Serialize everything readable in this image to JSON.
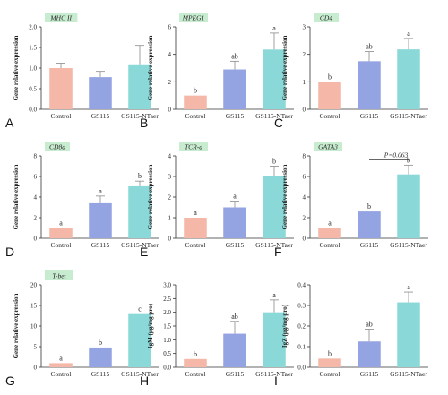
{
  "colors": {
    "bars": [
      "#f4b7a8",
      "#94a3e2",
      "#8bd8d8"
    ],
    "error": "#8a8a8a",
    "title_box": "#c8ecd0"
  },
  "chart_data": [
    {
      "type": "bar",
      "panel": "A",
      "title": "MHC II",
      "title_italic": true,
      "ylabel": "Gene relative expression",
      "categories": [
        "Control",
        "GS115",
        "GS115-NTaer"
      ],
      "values": [
        1.0,
        0.78,
        1.07
      ],
      "errors": [
        0.12,
        0.14,
        0.48
      ],
      "ylim": [
        0,
        2.0
      ],
      "yticks": [
        "0.0",
        "0.5",
        "1.0",
        "1.5",
        "2.0"
      ],
      "sig_labels": [
        "",
        "",
        ""
      ]
    },
    {
      "type": "bar",
      "panel": "B",
      "title": "MPEG1",
      "title_italic": true,
      "ylabel": "Gene relative expression",
      "categories": [
        "Control",
        "GS115",
        "GS115-NTaer"
      ],
      "values": [
        1.0,
        2.9,
        4.35
      ],
      "errors": [
        0.0,
        0.6,
        1.2
      ],
      "ylim": [
        0,
        6
      ],
      "yticks": [
        "0",
        "2",
        "4",
        "6"
      ],
      "sig_labels": [
        "b",
        "ab",
        "a"
      ]
    },
    {
      "type": "bar",
      "panel": "C",
      "title": "CD4",
      "title_italic": true,
      "ylabel": "Gene relative expression",
      "categories": [
        "Control",
        "GS115",
        "GS115-NTaer"
      ],
      "values": [
        1.0,
        1.75,
        2.18
      ],
      "errors": [
        0.0,
        0.35,
        0.4
      ],
      "ylim": [
        0,
        3
      ],
      "yticks": [
        "0",
        "1",
        "2",
        "3"
      ],
      "sig_labels": [
        "b",
        "ab",
        "a"
      ]
    },
    {
      "type": "bar",
      "panel": "D",
      "title": "CD8a",
      "title_italic": true,
      "ylabel": "Gene relative expression",
      "categories": [
        "Control",
        "GS115",
        "GS115-NTaer"
      ],
      "values": [
        1.0,
        3.4,
        5.05
      ],
      "errors": [
        0.0,
        0.7,
        0.5
      ],
      "ylim": [
        0,
        8
      ],
      "yticks": [
        "0",
        "2",
        "4",
        "6",
        "8"
      ],
      "sig_labels": [
        "a",
        "a",
        "b"
      ]
    },
    {
      "type": "bar",
      "panel": "E",
      "title": "TCR-a",
      "title_italic": true,
      "ylabel": "Gene relative expression",
      "categories": [
        "Control",
        "GS115",
        "GS115-NTaer"
      ],
      "values": [
        1.0,
        1.5,
        3.0
      ],
      "errors": [
        0.0,
        0.3,
        0.5
      ],
      "ylim": [
        0,
        4
      ],
      "yticks": [
        "0",
        "1",
        "2",
        "3",
        "4"
      ],
      "sig_labels": [
        "a",
        "a",
        "b"
      ]
    },
    {
      "type": "bar",
      "panel": "F",
      "title": "GATA3",
      "title_italic": true,
      "ylabel": "Gene relative expression",
      "categories": [
        "Control",
        "GS115",
        "GS115-NTaer"
      ],
      "values": [
        1.0,
        2.6,
        6.2
      ],
      "errors": [
        0.0,
        0.0,
        0.9
      ],
      "ylim": [
        0,
        8
      ],
      "yticks": [
        "0",
        "2",
        "4",
        "6",
        "8"
      ],
      "sig_labels": [
        "a",
        "b",
        "b"
      ],
      "bracket": {
        "from": 1,
        "to": 2,
        "level": 7.6,
        "label": "P=0.063"
      }
    },
    {
      "type": "bar",
      "panel": "G",
      "title": "T-bet",
      "title_italic": true,
      "ylabel": "Gene relative expression",
      "categories": [
        "Control",
        "GS115",
        "GS115-NTaer"
      ],
      "values": [
        1.0,
        4.8,
        12.9
      ],
      "errors": [
        0.0,
        0.0,
        0.0
      ],
      "ylim": [
        0,
        20
      ],
      "yticks": [
        "0",
        "5",
        "10",
        "15",
        "20"
      ],
      "sig_labels": [
        "a",
        "b",
        "c"
      ]
    },
    {
      "type": "bar",
      "panel": "H",
      "title": "",
      "title_italic": false,
      "ylabel": "IgM (μg/mg pro)",
      "categories": [
        "Control",
        "GS115",
        "GS115-NTaer"
      ],
      "values": [
        0.3,
        1.22,
        2.0
      ],
      "errors": [
        0.0,
        0.45,
        0.45
      ],
      "ylim": [
        0,
        3.0
      ],
      "yticks": [
        "0.0",
        "0.5",
        "1.0",
        "1.5",
        "2.0",
        "2.5",
        "3.0"
      ],
      "sig_labels": [
        "b",
        "ab",
        "a"
      ]
    },
    {
      "type": "bar",
      "panel": "I",
      "title": "",
      "title_italic": false,
      "ylabel": "IgZ (μg/mg pro)",
      "categories": [
        "Control",
        "GS115",
        "GS115-NTaer"
      ],
      "values": [
        0.042,
        0.125,
        0.315
      ],
      "errors": [
        0.0,
        0.06,
        0.05
      ],
      "ylim": [
        0,
        0.4
      ],
      "yticks": [
        "0.0",
        "0.1",
        "0.2",
        "0.3",
        "0.4"
      ],
      "sig_labels": [
        "b",
        "ab",
        "a"
      ]
    }
  ]
}
